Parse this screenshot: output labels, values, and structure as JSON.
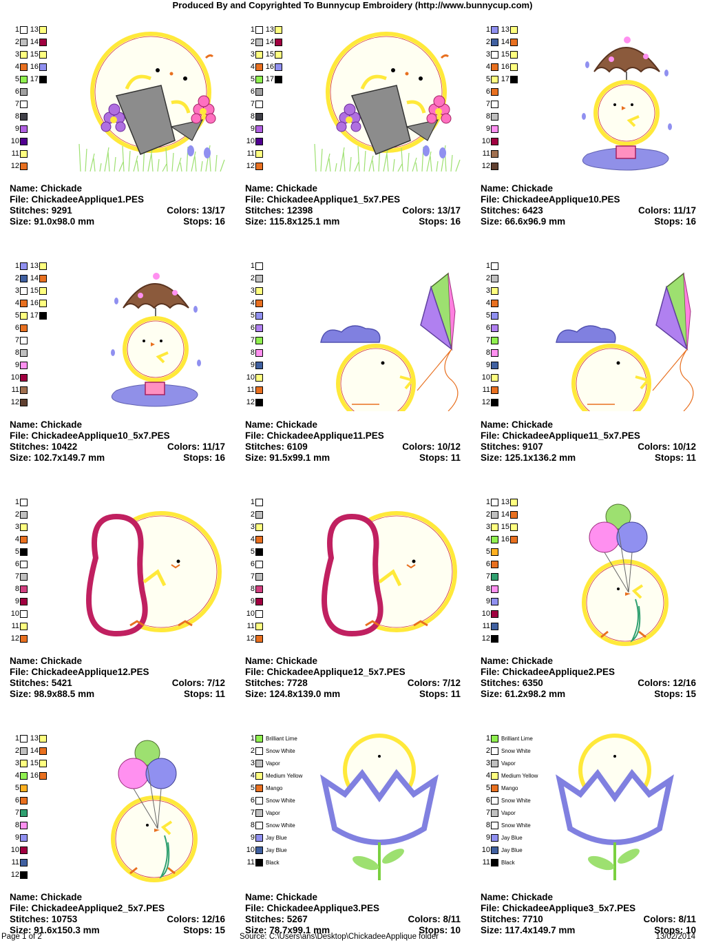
{
  "header": "Produced By and Copyrighted To Bunnycup Embroidery (http://www.bunnycup.com)",
  "labels": {
    "name": "Name:",
    "file": "File:",
    "stitches": "Stitches:",
    "size": "Size:",
    "colors": "Colors:",
    "stops": "Stops:"
  },
  "designs": [
    {
      "name": "Chickade",
      "file": "ChickadeeApplique1.PES",
      "stitches": "9291",
      "colors": "13/17",
      "size": "91.0x98.0 mm",
      "stops": "16",
      "art": "watering",
      "swatches": [
        [
          "1",
          "#ffffff",
          "13",
          "#ffff80"
        ],
        [
          "2",
          "#c0c0c0",
          "14",
          "#a00040"
        ],
        [
          "3",
          "#ffff80",
          "15",
          "#ffff80"
        ],
        [
          "4",
          "#e87020",
          "16",
          "#9090f0"
        ],
        [
          "5",
          "#90f050",
          "17",
          "#000000"
        ],
        [
          "6",
          "#a0a0a0"
        ],
        [
          "7",
          "#ffffff"
        ],
        [
          "8",
          "#404048"
        ],
        [
          "9",
          "#b060e0"
        ],
        [
          "10",
          "#500090"
        ],
        [
          "11",
          "#ffff80"
        ],
        [
          "12",
          "#e87020"
        ]
      ]
    },
    {
      "name": "Chickade",
      "file": "ChickadeeApplique1_5x7.PES",
      "stitches": "12398",
      "colors": "13/17",
      "size": "115.8x125.1 mm",
      "stops": "16",
      "art": "watering",
      "swatches": [
        [
          "1",
          "#ffffff",
          "13",
          "#ffff80"
        ],
        [
          "2",
          "#c0c0c0",
          "14",
          "#a00040"
        ],
        [
          "3",
          "#ffff80",
          "15",
          "#ffff80"
        ],
        [
          "4",
          "#e87020",
          "16",
          "#9090f0"
        ],
        [
          "5",
          "#90f050",
          "17",
          "#000000"
        ],
        [
          "6",
          "#a0a0a0"
        ],
        [
          "7",
          "#ffffff"
        ],
        [
          "8",
          "#404048"
        ],
        [
          "9",
          "#b060e0"
        ],
        [
          "10",
          "#500090"
        ],
        [
          "11",
          "#ffff80"
        ],
        [
          "12",
          "#e87020"
        ]
      ]
    },
    {
      "name": "Chickade",
      "file": "ChickadeeApplique10.PES",
      "stitches": "6423",
      "colors": "11/17",
      "size": "66.6x96.9 mm",
      "stops": "16",
      "art": "umbrella",
      "swatches": [
        [
          "1",
          "#9090f0",
          "13",
          "#ffff80"
        ],
        [
          "2",
          "#4060a0",
          "14",
          "#e87020"
        ],
        [
          "3",
          "#ffffff",
          "15",
          "#ffff80"
        ],
        [
          "4",
          "#e87020",
          "16",
          "#ffff80"
        ],
        [
          "5",
          "#ffff80",
          "17",
          "#000000"
        ],
        [
          "6",
          "#e87020"
        ],
        [
          "7",
          "#ffffff"
        ],
        [
          "8",
          "#c0c0c0"
        ],
        [
          "9",
          "#ff90f0"
        ],
        [
          "10",
          "#a00040"
        ],
        [
          "11",
          "#a07050"
        ],
        [
          "12",
          "#604030"
        ]
      ]
    },
    {
      "name": "Chickade",
      "file": "ChickadeeApplique10_5x7.PES",
      "stitches": "10422",
      "colors": "11/17",
      "size": "102.7x149.7 mm",
      "stops": "16",
      "art": "umbrella",
      "swatches": [
        [
          "1",
          "#9090f0",
          "13",
          "#ffff80"
        ],
        [
          "2",
          "#4060a0",
          "14",
          "#e87020"
        ],
        [
          "3",
          "#ffffff",
          "15",
          "#ffff80"
        ],
        [
          "4",
          "#e87020",
          "16",
          "#ffff80"
        ],
        [
          "5",
          "#ffff80",
          "17",
          "#000000"
        ],
        [
          "6",
          "#e87020"
        ],
        [
          "7",
          "#ffffff"
        ],
        [
          "8",
          "#c0c0c0"
        ],
        [
          "9",
          "#ff90f0"
        ],
        [
          "10",
          "#a00040"
        ],
        [
          "11",
          "#a07050"
        ],
        [
          "12",
          "#604030"
        ]
      ]
    },
    {
      "name": "Chickade",
      "file": "ChickadeeApplique11.PES",
      "stitches": "6109",
      "colors": "10/12",
      "size": "91.5x99.1 mm",
      "stops": "11",
      "art": "kite",
      "swatches": [
        [
          "1",
          "#ffffff"
        ],
        [
          "2",
          "#c0c0c0"
        ],
        [
          "3",
          "#ffff80"
        ],
        [
          "4",
          "#e87020"
        ],
        [
          "5",
          "#9090f0"
        ],
        [
          "6",
          "#b080f0"
        ],
        [
          "7",
          "#90f050"
        ],
        [
          "8",
          "#ff90f0"
        ],
        [
          "9",
          "#4060a0"
        ],
        [
          "10",
          "#ffff80"
        ],
        [
          "11",
          "#e87020"
        ],
        [
          "12",
          "#000000"
        ]
      ]
    },
    {
      "name": "Chickade",
      "file": "ChickadeeApplique11_5x7.PES",
      "stitches": "9107",
      "colors": "10/12",
      "size": "125.1x136.2 mm",
      "stops": "11",
      "art": "kite",
      "swatches": [
        [
          "1",
          "#ffffff"
        ],
        [
          "2",
          "#c0c0c0"
        ],
        [
          "3",
          "#ffff80"
        ],
        [
          "4",
          "#e87020"
        ],
        [
          "5",
          "#9090f0"
        ],
        [
          "6",
          "#b080f0"
        ],
        [
          "7",
          "#90f050"
        ],
        [
          "8",
          "#ff90f0"
        ],
        [
          "9",
          "#4060a0"
        ],
        [
          "10",
          "#ffff80"
        ],
        [
          "11",
          "#e87020"
        ],
        [
          "12",
          "#000000"
        ]
      ]
    },
    {
      "name": "Chickade",
      "file": "ChickadeeApplique12.PES",
      "stitches": "5421",
      "colors": "7/12",
      "size": "98.9x88.5 mm",
      "stops": "11",
      "art": "bean",
      "swatches": [
        [
          "1",
          "#ffffff"
        ],
        [
          "2",
          "#c0c0c0"
        ],
        [
          "3",
          "#ffff80"
        ],
        [
          "4",
          "#e87020"
        ],
        [
          "5",
          "#000000"
        ],
        [
          "6",
          "#ffffff"
        ],
        [
          "7",
          "#c0c0c0"
        ],
        [
          "8",
          "#d04080"
        ],
        [
          "9",
          "#a00040"
        ],
        [
          "10",
          "#ffffff"
        ],
        [
          "11",
          "#ffff80"
        ],
        [
          "12",
          "#e87020"
        ]
      ]
    },
    {
      "name": "Chickade",
      "file": "ChickadeeApplique12_5x7.PES",
      "stitches": "7728",
      "colors": "7/12",
      "size": "124.8x139.0 mm",
      "stops": "11",
      "art": "bean",
      "swatches": [
        [
          "1",
          "#ffffff"
        ],
        [
          "2",
          "#c0c0c0"
        ],
        [
          "3",
          "#ffff80"
        ],
        [
          "4",
          "#e87020"
        ],
        [
          "5",
          "#000000"
        ],
        [
          "6",
          "#ffffff"
        ],
        [
          "7",
          "#c0c0c0"
        ],
        [
          "8",
          "#d04080"
        ],
        [
          "9",
          "#a00040"
        ],
        [
          "10",
          "#ffffff"
        ],
        [
          "11",
          "#ffff80"
        ],
        [
          "12",
          "#e87020"
        ]
      ]
    },
    {
      "name": "Chickade",
      "file": "ChickadeeApplique2.PES",
      "stitches": "6350",
      "colors": "12/16",
      "size": "61.2x98.2 mm",
      "stops": "15",
      "art": "balloons",
      "swatches": [
        [
          "1",
          "#ffffff",
          "13",
          "#ffff80"
        ],
        [
          "2",
          "#c0c0c0",
          "14",
          "#e87020"
        ],
        [
          "3",
          "#ffff80",
          "15",
          "#ffff80"
        ],
        [
          "4",
          "#90f050",
          "16",
          "#e87020"
        ],
        [
          "5",
          "#ffb020"
        ],
        [
          "6",
          "#e87020"
        ],
        [
          "7",
          "#30a070"
        ],
        [
          "8",
          "#ff90f0"
        ],
        [
          "9",
          "#9090f0"
        ],
        [
          "10",
          "#a00040"
        ],
        [
          "11",
          "#4060a0"
        ],
        [
          "12",
          "#000000"
        ]
      ]
    },
    {
      "name": "Chickade",
      "file": "ChickadeeApplique2_5x7.PES",
      "stitches": "10753",
      "colors": "12/16",
      "size": "91.6x150.3 mm",
      "stops": "15",
      "art": "balloons",
      "swatches": [
        [
          "1",
          "#ffffff",
          "13",
          "#ffff80"
        ],
        [
          "2",
          "#c0c0c0",
          "14",
          "#e87020"
        ],
        [
          "3",
          "#ffff80",
          "15",
          "#ffff80"
        ],
        [
          "4",
          "#90f050",
          "16",
          "#e87020"
        ],
        [
          "5",
          "#ffb020"
        ],
        [
          "6",
          "#e87020"
        ],
        [
          "7",
          "#30a070"
        ],
        [
          "8",
          "#ff90f0"
        ],
        [
          "9",
          "#9090f0"
        ],
        [
          "10",
          "#a00040"
        ],
        [
          "11",
          "#4060a0"
        ],
        [
          "12",
          "#000000"
        ]
      ]
    },
    {
      "name": "Chickade",
      "file": "ChickadeeApplique3.PES",
      "stitches": "5267",
      "colors": "8/11",
      "size": "78.7x99.1 mm",
      "stops": "10",
      "art": "tulip",
      "swatches": [
        [
          "1",
          "#90f050",
          "Brilliant Lime"
        ],
        [
          "2",
          "#ffffff",
          "Snow White"
        ],
        [
          "3",
          "#c0c0c0",
          "Vapor"
        ],
        [
          "4",
          "#ffff80",
          "Medium Yellow"
        ],
        [
          "5",
          "#e87020",
          "Mango"
        ],
        [
          "6",
          "#ffffff",
          "Snow White"
        ],
        [
          "7",
          "#c0c0c0",
          "Vapor"
        ],
        [
          "8",
          "#ffffff",
          "Snow White"
        ],
        [
          "9",
          "#9090f0",
          "Jay Blue"
        ],
        [
          "10",
          "#4060a0",
          "Jay Blue"
        ],
        [
          "11",
          "#000000",
          "Black"
        ]
      ]
    },
    {
      "name": "Chickade",
      "file": "ChickadeeApplique3_5x7.PES",
      "stitches": "7710",
      "colors": "8/11",
      "size": "117.4x149.7 mm",
      "stops": "10",
      "art": "tulip",
      "swatches": [
        [
          "1",
          "#90f050",
          "Brilliant Lime"
        ],
        [
          "2",
          "#ffffff",
          "Snow White"
        ],
        [
          "3",
          "#c0c0c0",
          "Vapor"
        ],
        [
          "4",
          "#ffff80",
          "Medium Yellow"
        ],
        [
          "5",
          "#e87020",
          "Mango"
        ],
        [
          "6",
          "#ffffff",
          "Snow White"
        ],
        [
          "7",
          "#c0c0c0",
          "Vapor"
        ],
        [
          "8",
          "#ffffff",
          "Snow White"
        ],
        [
          "9",
          "#9090f0",
          "Jay Blue"
        ],
        [
          "10",
          "#4060a0",
          "Jay Blue"
        ],
        [
          "11",
          "#000000",
          "Black"
        ]
      ]
    }
  ],
  "footer": {
    "page": "Page 1 of 2",
    "source": "Source:  C:\\Users\\ans\\Desktop\\ChickadeeApplique folder",
    "date": "13/02/2014"
  }
}
